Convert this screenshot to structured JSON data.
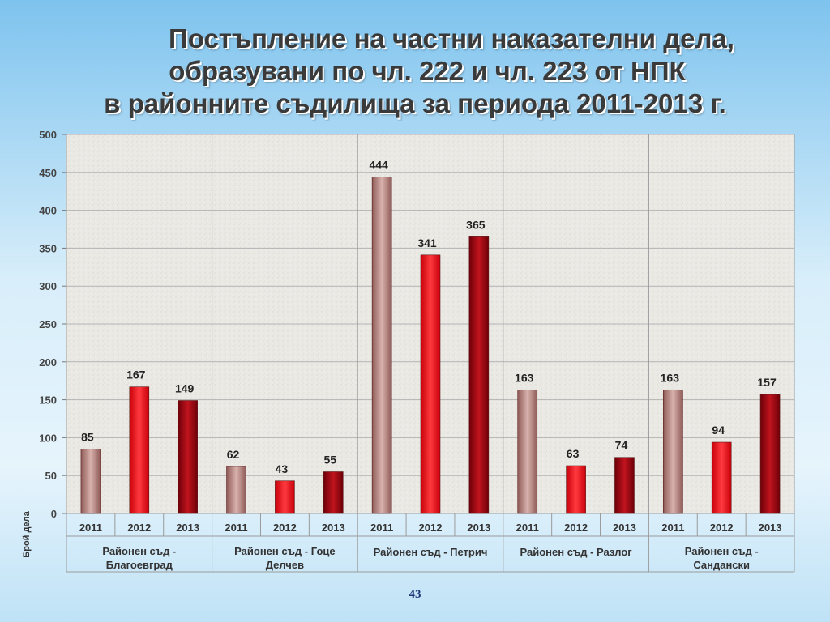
{
  "title": {
    "line1": "Постъпление на частни наказателни дела,",
    "line2": "образувани по чл. 222 и чл. 223 от НПК",
    "line3": "в районните съдилища за периода 2011-2013 г."
  },
  "page_number": "43",
  "chart_data": {
    "type": "bar",
    "title": "Постъпление на частни наказателни дела, образувани по чл. 222 и чл. 223 от НПК в районните съдилища за периода 2011-2013 г.",
    "ylabel": "Брой дела",
    "xlabel": "",
    "ylim": [
      0,
      500
    ],
    "yticks": [
      0,
      50,
      100,
      150,
      200,
      250,
      300,
      350,
      400,
      450,
      500
    ],
    "grid": true,
    "years": [
      "2011",
      "2012",
      "2013"
    ],
    "groups": [
      {
        "name": "Районен съд - Благоевград",
        "label_lines": [
          "Районен съд -",
          "Благоевград"
        ],
        "values": [
          85,
          167,
          149
        ]
      },
      {
        "name": "Районен съд - Гоце Делчев",
        "label_lines": [
          "Районен съд - Гоце",
          "Делчев"
        ],
        "values": [
          62,
          43,
          55
        ]
      },
      {
        "name": "Районен съд - Петрич",
        "label_lines": [
          "Районен съд - Петрич"
        ],
        "values": [
          444,
          341,
          365
        ]
      },
      {
        "name": "Районен съд - Разлог",
        "label_lines": [
          "Районен съд - Разлог"
        ],
        "values": [
          163,
          63,
          74
        ]
      },
      {
        "name": "Районен съд - Сандански",
        "label_lines": [
          "Районен съд -",
          "Сандански"
        ],
        "values": [
          163,
          94,
          157
        ]
      }
    ],
    "colors": {
      "2011": "#b88a86",
      "2012": "#e8151c",
      "2013": "#a01018"
    }
  }
}
